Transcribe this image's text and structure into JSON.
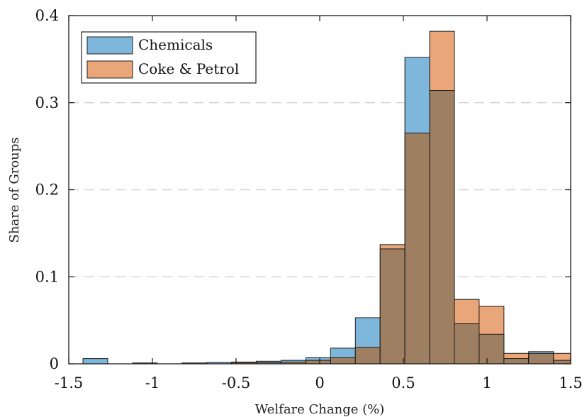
{
  "chart_data": {
    "type": "bar",
    "subtype": "overlapping-histogram",
    "title": "",
    "xlabel": "Welfare Change (%)",
    "ylabel": "Share of Groups",
    "xlim": [
      -1.5,
      1.5
    ],
    "ylim": [
      0,
      0.4
    ],
    "xticks": [
      -1.5,
      -1,
      -0.5,
      0,
      0.5,
      1,
      1.5
    ],
    "xtick_labels": [
      "-1.5",
      "-1",
      "-0.5",
      "0",
      "0.5",
      "1",
      "1.5"
    ],
    "yticks": [
      0,
      0.1,
      0.2,
      0.3,
      0.4
    ],
    "ytick_labels": [
      "0",
      "0.1",
      "0.2",
      "0.3",
      "0.4"
    ],
    "grid": "horizontal dashed",
    "legend_position": "top-left",
    "bin_edges": [
      -1.415,
      -1.267,
      -1.119,
      -0.971,
      -0.823,
      -0.675,
      -0.527,
      -0.379,
      -0.231,
      -0.083,
      0.065,
      0.213,
      0.361,
      0.509,
      0.657,
      0.805,
      0.953,
      1.101,
      1.249,
      1.397,
      1.545
    ],
    "series": [
      {
        "name": "Chemicals",
        "color": "#7eb7db",
        "values": [
          0.006,
          0.0,
          0.001,
          0.0,
          0.001,
          0.0015,
          0.002,
          0.003,
          0.004,
          0.007,
          0.018,
          0.053,
          0.132,
          0.352,
          0.314,
          0.046,
          0.034,
          0.006,
          0.014,
          0.004
        ]
      },
      {
        "name": "Coke & Petrol",
        "color": "#e8a679",
        "values": [
          0.0,
          0.0,
          0.0,
          0.0,
          0.0,
          0.0,
          0.0015,
          0.0015,
          0.002,
          0.004,
          0.007,
          0.019,
          0.137,
          0.265,
          0.382,
          0.074,
          0.066,
          0.012,
          0.012,
          0.012
        ]
      }
    ],
    "overlap_color": "#9f7f61"
  }
}
